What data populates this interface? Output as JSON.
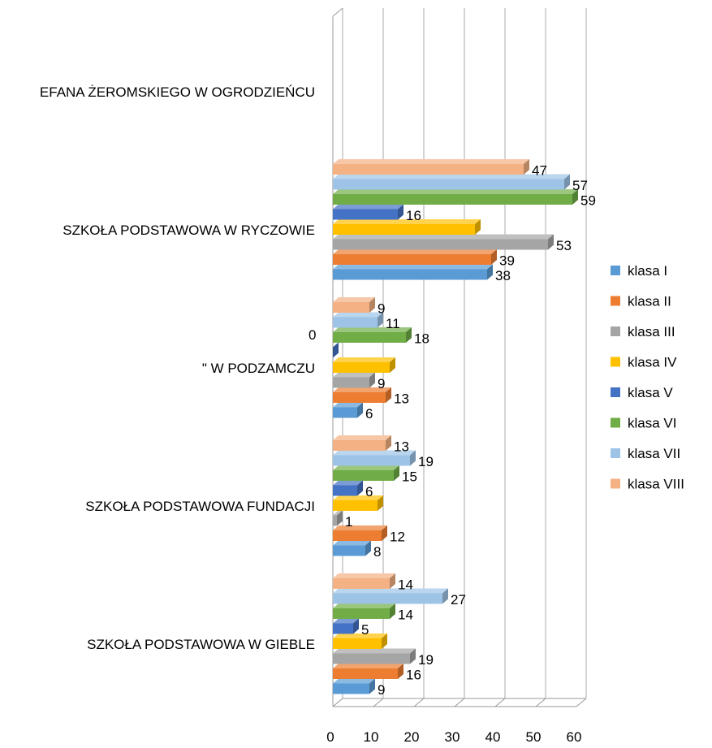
{
  "chart_data": {
    "type": "bar3d_horizontal",
    "categories": [
      "SZKOŁA PODSTAWOWA W GIEBLE",
      "SZKOŁA PODSTAWOWA FUNDACJI",
      "\" W PODZAMCZU",
      "SZKOŁA PODSTAWOWA W RYCZOWIE",
      "EFANA ŻEROMSKIEGO W OGRODZIEŃCU"
    ],
    "series": [
      {
        "name": "klasa I",
        "color": "#5b9bd5",
        "values": [
          9,
          8,
          6,
          38,
          null
        ],
        "labels": true
      },
      {
        "name": "klasa II",
        "color": "#ed7d31",
        "values": [
          16,
          12,
          13,
          39,
          null
        ],
        "labels": true
      },
      {
        "name": "klasa III",
        "color": "#a5a5a5",
        "values": [
          19,
          1,
          9,
          53,
          null
        ],
        "labels": true
      },
      {
        "name": "klasa IV",
        "color": "#ffc000",
        "values": [
          12,
          11,
          14,
          35,
          null
        ],
        "labels": false
      },
      {
        "name": "klasa V",
        "color": "#4472c4",
        "values": [
          5,
          6,
          0,
          16,
          null
        ],
        "labels": true
      },
      {
        "name": "klasa VI",
        "color": "#70ad47",
        "values": [
          14,
          15,
          18,
          59,
          null
        ],
        "labels": true
      },
      {
        "name": "klasa VII",
        "color": "#9dc3e6",
        "values": [
          27,
          19,
          11,
          57,
          null
        ],
        "labels": true
      },
      {
        "name": "klasa VIII",
        "color": "#f4b183",
        "values": [
          14,
          13,
          9,
          47,
          null
        ],
        "labels": true
      }
    ],
    "xlim": [
      0,
      60
    ],
    "xticks": [
      0,
      10,
      20,
      30,
      40,
      50,
      60
    ],
    "grid": true,
    "legend": "right"
  }
}
